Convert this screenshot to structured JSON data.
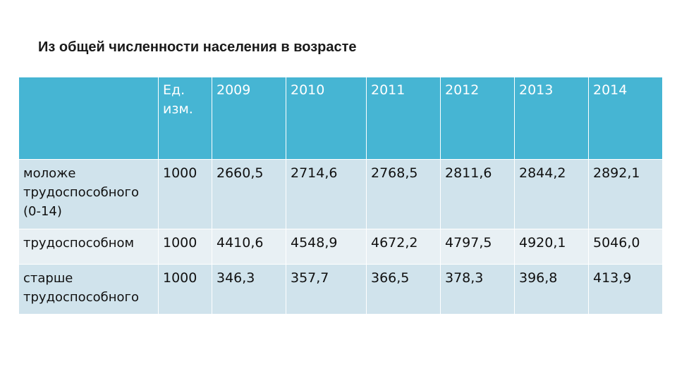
{
  "title": "Из общей численности населения в возрасте",
  "table": {
    "headers": [
      "",
      "Ед. изм.",
      "2009",
      "2010",
      "2011",
      "2012",
      "2013",
      "2014"
    ],
    "rows": [
      {
        "label": "моложе трудоспособного (0-14)",
        "unit": "1000",
        "values": [
          "2660,5",
          "2714,6",
          "2768,5",
          "2811,6",
          "2844,2",
          "2892,1"
        ]
      },
      {
        "label": "трудоспособном",
        "unit": "1000",
        "values": [
          "4410,6",
          "4548,9",
          "4672,2",
          "4797,5",
          "4920,1",
          "5046,0"
        ]
      },
      {
        "label": "старше трудоспособного",
        "unit": "1000",
        "values": [
          "346,3",
          "357,7",
          "366,5",
          "378,3",
          "396,8",
          "413,9"
        ]
      }
    ]
  },
  "colors": {
    "header_bg": "#46b5d3",
    "row_dark": "#d0e3ec",
    "row_light": "#e8f0f4"
  }
}
